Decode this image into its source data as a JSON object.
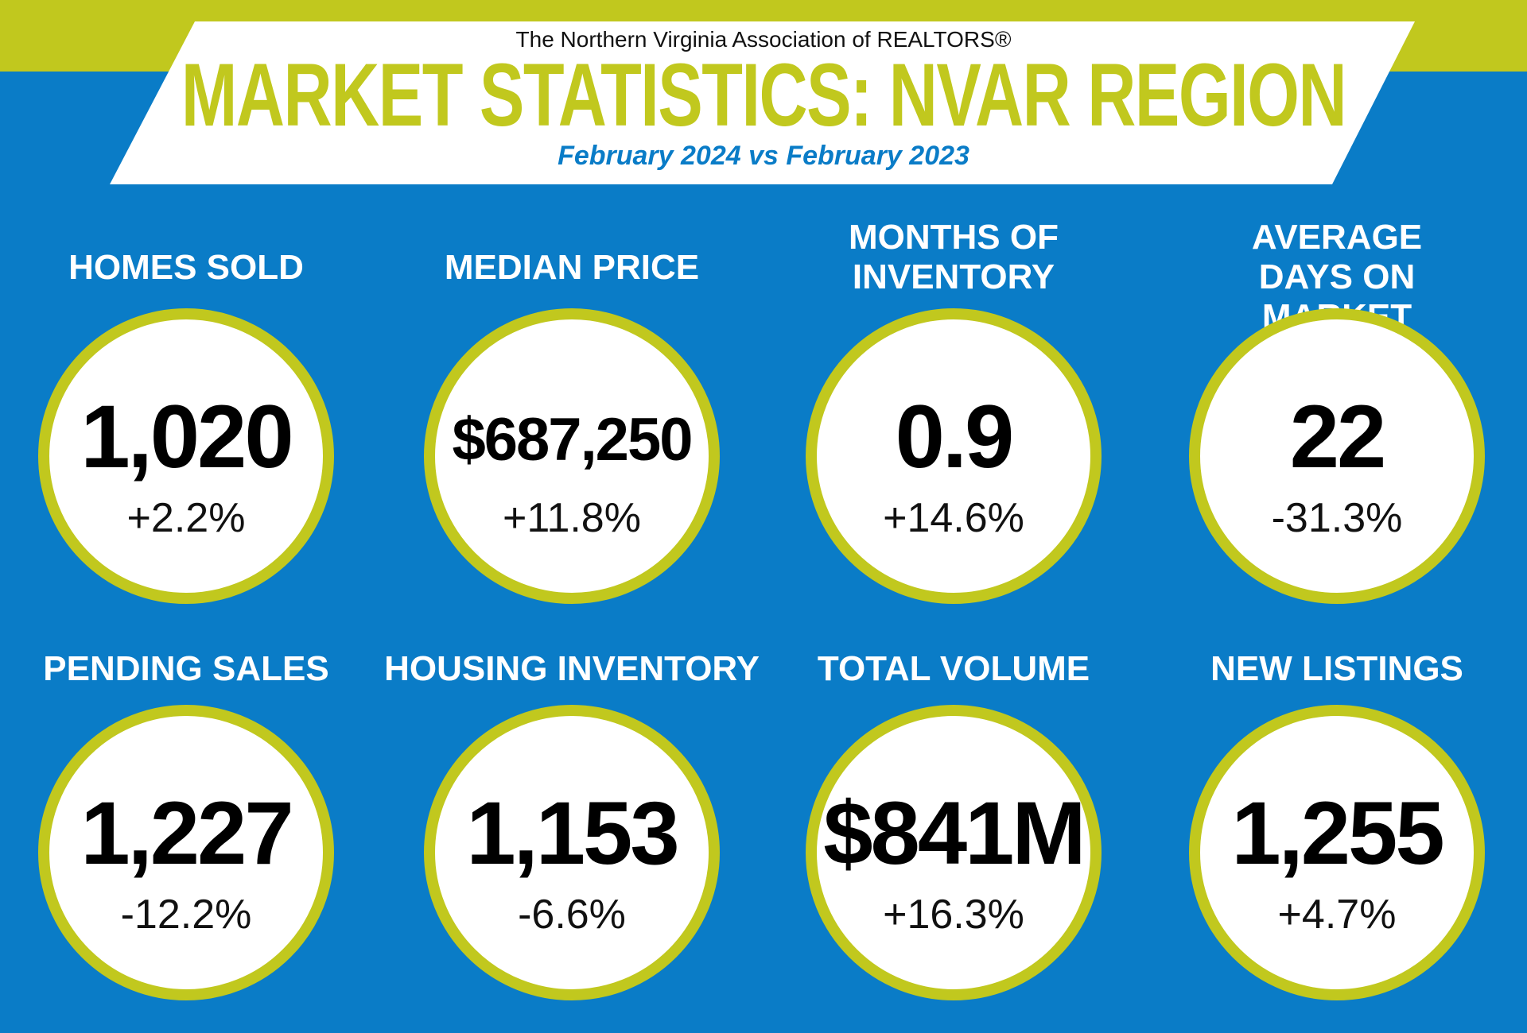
{
  "header": {
    "organization": "The Northern Virginia Association of REALTORS®",
    "title": "MARKET STATISTICS: NVAR REGION",
    "subtitle": "February 2024 vs February 2023"
  },
  "colors": {
    "background": "#0a7cc7",
    "accent": "#c1c81e",
    "banner": "#ffffff"
  },
  "stats": [
    {
      "label": "HOMES SOLD",
      "value": "1,020",
      "change": "+2.2%"
    },
    {
      "label": "MEDIAN PRICE",
      "value": "$687,250",
      "change": "+11.8%"
    },
    {
      "label": "MONTHS OF INVENTORY",
      "value": "0.9",
      "change": "+14.6%"
    },
    {
      "label": "AVERAGE DAYS ON MARKET",
      "value": "22",
      "change": "-31.3%"
    },
    {
      "label": "PENDING SALES",
      "value": "1,227",
      "change": "-12.2%"
    },
    {
      "label": "HOUSING INVENTORY",
      "value": "1,153",
      "change": "-6.6%"
    },
    {
      "label": "TOTAL VOLUME",
      "value": "$841M",
      "change": "+16.3%"
    },
    {
      "label": "NEW LISTINGS",
      "value": "1,255",
      "change": "+4.7%"
    }
  ]
}
